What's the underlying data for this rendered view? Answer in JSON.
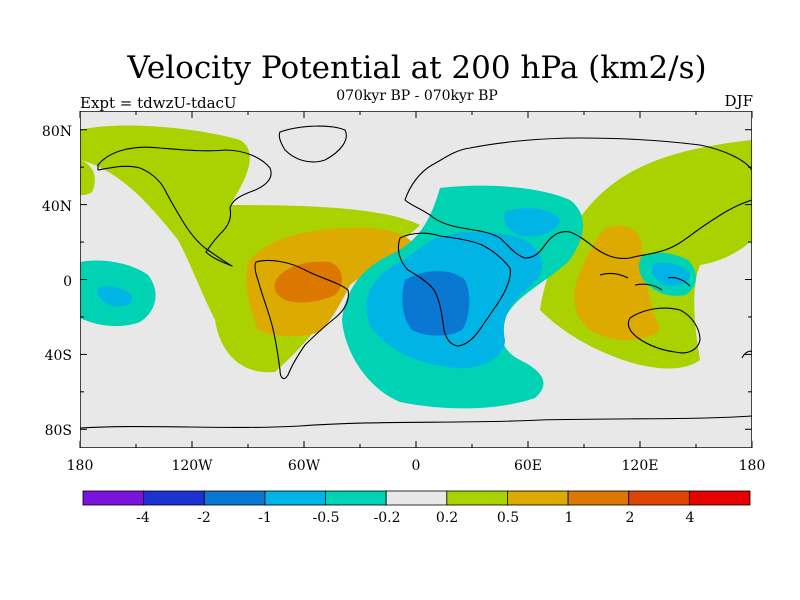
{
  "header": {
    "title": "Velocity Potential at 200 hPa (km2/s)",
    "subtitle": "070kyr BP - 070kyr BP",
    "experiment": "Expt = tdwzU-tdacU",
    "season": "DJF"
  },
  "axes": {
    "lon_ticks": [
      "180",
      "120W",
      "60W",
      "0",
      "60E",
      "120E",
      "180"
    ],
    "lat_ticks": [
      "80N",
      "40N",
      "0",
      "40S",
      "80S"
    ]
  },
  "colorbar": {
    "colors": [
      "#7a14dc",
      "#1e32d2",
      "#0a78d2",
      "#00b4e6",
      "#00d2b4",
      "#e8e8e8",
      "#a8d200",
      "#dcaa00",
      "#dc7800",
      "#dc4600",
      "#e60000"
    ],
    "labels": [
      "-4",
      "-2",
      "-1",
      "-0.5",
      "-0.2",
      "0.2",
      "0.5",
      "1",
      "2",
      "4"
    ]
  },
  "map_fields": {
    "background": "#e8e8e8",
    "levels": {
      "green": "#aad200",
      "yellow": "#dcaa00",
      "orange": "#dc7800",
      "teal": "#00d2b4",
      "cyan": "#00b4e6",
      "blue": "#0a78d2"
    }
  }
}
